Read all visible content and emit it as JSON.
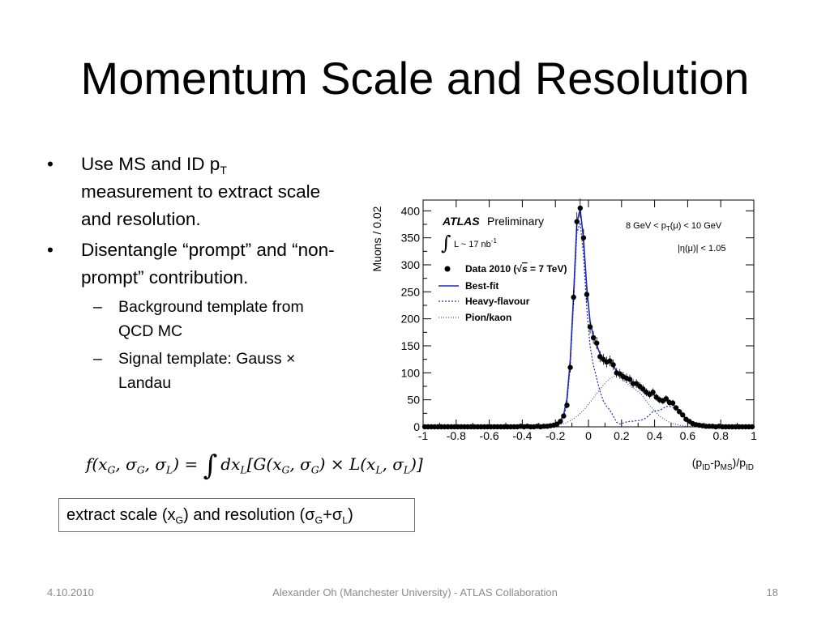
{
  "slide": {
    "title": "Momentum Scale and Resolution",
    "bullets": [
      {
        "pre": "Use MS and ID p",
        "sub": "T",
        "post": " measurement to extract scale and resolution."
      },
      {
        "text": "Disentangle “prompt” and “non-prompt” contribution."
      }
    ],
    "subbullets": [
      "Background template from  QCD MC",
      "Signal template: Gauss × Landau"
    ],
    "bullet_symbol": "•",
    "subbullet_symbol": "–",
    "formula": {
      "lhs": "f(x",
      "lhs_parts": [
        "f(x",
        "G",
        ", σ",
        "G",
        ", σ",
        "L",
        ") = "
      ],
      "integral": "∫",
      "rhs_parts": [
        "dx",
        "L",
        "[G(x",
        "G",
        ", σ",
        "G",
        ") × L(x",
        "L",
        ", σ",
        "L",
        ")]"
      ]
    },
    "callout": {
      "parts": [
        "extract scale (x",
        "G",
        ") and resolution (σ",
        "G",
        "+σ",
        "L",
        ")"
      ]
    },
    "footer": {
      "date": "4.10.2010",
      "center": "Alexander Oh (Manchester University) - ATLAS Collaboration",
      "page": "18"
    }
  },
  "chart_data": {
    "type": "scatter",
    "ylabel": "Muons / 0.02",
    "xlabel": {
      "parts": [
        "(p",
        "ID",
        "-p",
        "MS",
        ")/p",
        "ID"
      ]
    },
    "xlim": [
      -1,
      1
    ],
    "ylim": [
      0,
      420
    ],
    "xticks": [
      "-1",
      "-0.8",
      "-0.6",
      "-0.4",
      "-0.2",
      "0",
      "0.2",
      "0.4",
      "0.6",
      "0.8",
      "1"
    ],
    "yticks": [
      "0",
      "50",
      "100",
      "150",
      "200",
      "250",
      "300",
      "350",
      "400"
    ],
    "annotations": {
      "experiment": "ATLAS",
      "status": "Preliminary",
      "lumi_prefix": "L ~ 17 nb",
      "lumi_sup": "-1",
      "integral": "∫",
      "cut1_parts": [
        "8 GeV < p",
        "T",
        "(μ) < 10 GeV"
      ],
      "cut2": "|η(μ)| < 1.05"
    },
    "legend": {
      "placement": "top-left",
      "entries": [
        {
          "pre": "Data 2010 (",
          "sqrt": "√",
          "s": "s",
          "post": " = 7 TeV)",
          "style": "marker"
        },
        {
          "label": "Best-fit",
          "style": "solid"
        },
        {
          "label": "Heavy-flavour",
          "style": "dashed"
        },
        {
          "label": "Pion/kaon",
          "style": "dotted"
        }
      ]
    },
    "colors": {
      "fit": "#1f2bb8",
      "data": "#000000",
      "axis": "#000000"
    },
    "series": [
      {
        "name": "Data 2010 (√s = 7 TeV)",
        "x": [
          -0.99,
          -0.97,
          -0.95,
          -0.93,
          -0.91,
          -0.89,
          -0.87,
          -0.85,
          -0.83,
          -0.81,
          -0.79,
          -0.77,
          -0.75,
          -0.73,
          -0.71,
          -0.69,
          -0.67,
          -0.65,
          -0.63,
          -0.61,
          -0.59,
          -0.57,
          -0.55,
          -0.53,
          -0.51,
          -0.49,
          -0.47,
          -0.45,
          -0.43,
          -0.41,
          -0.39,
          -0.37,
          -0.35,
          -0.33,
          -0.31,
          -0.29,
          -0.27,
          -0.25,
          -0.23,
          -0.21,
          -0.19,
          -0.17,
          -0.15,
          -0.13,
          -0.11,
          -0.09,
          -0.07,
          -0.05,
          -0.03,
          -0.01,
          0.01,
          0.03,
          0.05,
          0.07,
          0.09,
          0.11,
          0.13,
          0.15,
          0.17,
          0.19,
          0.21,
          0.23,
          0.25,
          0.27,
          0.29,
          0.31,
          0.33,
          0.35,
          0.37,
          0.39,
          0.41,
          0.43,
          0.45,
          0.47,
          0.49,
          0.51,
          0.53,
          0.55,
          0.57,
          0.59,
          0.61,
          0.63,
          0.65,
          0.67,
          0.69,
          0.71,
          0.73,
          0.75,
          0.77,
          0.79,
          0.81,
          0.83,
          0.85,
          0.87,
          0.89,
          0.91,
          0.93,
          0.95,
          0.97,
          0.99
        ],
        "y": [
          0,
          0,
          0,
          0,
          0,
          0,
          0,
          0,
          0,
          0,
          0,
          0,
          0,
          0,
          0,
          0,
          0,
          0,
          0,
          0,
          0,
          0,
          0,
          0,
          0,
          0,
          0,
          0,
          0,
          1,
          0,
          1,
          0,
          0,
          1,
          0,
          1,
          1,
          2,
          3,
          5,
          10,
          20,
          40,
          110,
          240,
          380,
          405,
          350,
          245,
          185,
          165,
          155,
          130,
          125,
          120,
          122,
          115,
          100,
          98,
          93,
          90,
          88,
          80,
          80,
          75,
          70,
          64,
          60,
          64,
          55,
          50,
          48,
          52,
          45,
          44,
          35,
          28,
          22,
          14,
          10,
          6,
          4,
          3,
          2,
          1,
          1,
          1,
          0,
          1,
          0,
          0,
          0,
          0,
          0,
          0,
          0,
          0,
          0,
          0
        ],
        "style": "marker"
      },
      {
        "name": "Best-fit",
        "style": "solid"
      },
      {
        "name": "Heavy-flavour",
        "style": "dashed"
      },
      {
        "name": "Pion/kaon",
        "style": "dotted"
      }
    ]
  }
}
